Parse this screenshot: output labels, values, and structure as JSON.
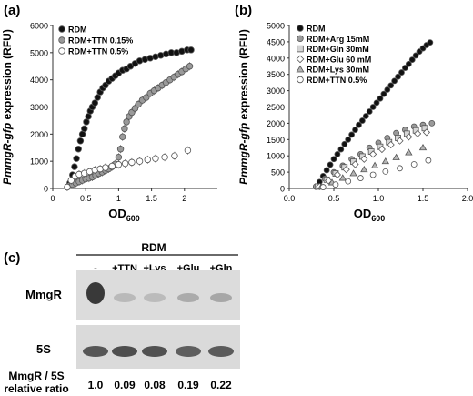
{
  "chart_data": [
    {
      "panel_label": "(a)",
      "type": "scatter",
      "ylabel": "PmmgR-gfp expression (RFU)",
      "ylabel_italic": "PmmgR-gfp",
      "ylabel_rest": " expression (RFU)",
      "xlabel": "OD600",
      "xlabel_main": "OD",
      "xlabel_sub": "600",
      "xlim": [
        0,
        2.5
      ],
      "ylim": [
        0,
        6000
      ],
      "xticks": [
        "0",
        "0.5",
        "1",
        "1.5",
        "2"
      ],
      "yticks": [
        "0",
        "1000",
        "2000",
        "3000",
        "4000",
        "5000",
        "6000"
      ],
      "legend_position": "top-left",
      "series": [
        {
          "name": "RDM",
          "marker": "circle",
          "fill": "#111111",
          "x": [
            0.26,
            0.3,
            0.33,
            0.36,
            0.39,
            0.42,
            0.45,
            0.48,
            0.51,
            0.54,
            0.57,
            0.6,
            0.64,
            0.68,
            0.72,
            0.76,
            0.8,
            0.85,
            0.9,
            0.95,
            1.0,
            1.06,
            1.12,
            1.18,
            1.25,
            1.32,
            1.4,
            1.48,
            1.56,
            1.64,
            1.72,
            1.8,
            1.88,
            1.96,
            2.04,
            2.1
          ],
          "y": [
            200,
            500,
            800,
            1100,
            1450,
            1750,
            2000,
            2200,
            2450,
            2650,
            2850,
            3000,
            3150,
            3350,
            3550,
            3700,
            3800,
            3950,
            4050,
            4150,
            4250,
            4350,
            4400,
            4500,
            4600,
            4700,
            4750,
            4800,
            4850,
            4900,
            4950,
            5000,
            5000,
            5050,
            5100,
            5100
          ]
        },
        {
          "name": "RDM+TTN 0.15%",
          "marker": "circle",
          "fill": "#9a9a9a",
          "x": [
            0.25,
            0.3,
            0.35,
            0.4,
            0.45,
            0.5,
            0.55,
            0.6,
            0.65,
            0.7,
            0.75,
            0.8,
            0.85,
            0.9,
            0.95,
            1.0,
            1.03,
            1.06,
            1.09,
            1.12,
            1.16,
            1.2,
            1.25,
            1.3,
            1.36,
            1.42,
            1.48,
            1.54,
            1.6,
            1.66,
            1.72,
            1.78,
            1.84,
            1.9,
            1.96,
            2.02,
            2.08
          ],
          "y": [
            100,
            150,
            200,
            250,
            300,
            350,
            380,
            420,
            480,
            550,
            600,
            660,
            720,
            800,
            900,
            1150,
            1450,
            1900,
            2200,
            2450,
            2650,
            2800,
            2950,
            3100,
            3250,
            3350,
            3500,
            3600,
            3700,
            3800,
            3900,
            4000,
            4100,
            4200,
            4300,
            4400,
            4500
          ]
        },
        {
          "name": "RDM+TTN 0.5%",
          "marker": "circle",
          "fill": "#ffffff",
          "x": [
            0.22,
            0.28,
            0.34,
            0.4,
            0.48,
            0.56,
            0.64,
            0.72,
            0.8,
            0.9,
            1.0,
            1.1,
            1.2,
            1.32,
            1.44,
            1.56,
            1.7,
            1.85,
            2.05
          ],
          "y": [
            50,
            300,
            450,
            520,
            560,
            620,
            680,
            720,
            770,
            820,
            880,
            920,
            960,
            1000,
            1060,
            1100,
            1150,
            1200,
            1400
          ]
        }
      ]
    },
    {
      "panel_label": "(b)",
      "type": "scatter",
      "ylabel": "PmmgR-gfp expression (RFU)",
      "ylabel_italic": "PmmgR-gfp",
      "ylabel_rest": " expression (RFU)",
      "xlabel": "OD600",
      "xlabel_main": "OD",
      "xlabel_sub": "600",
      "xlim": [
        0,
        2.0
      ],
      "ylim": [
        0,
        5000
      ],
      "xticks": [
        "0.0",
        "0.5",
        "1.0",
        "1.5",
        "2.0"
      ],
      "yticks": [
        "0",
        "500",
        "1000",
        "1500",
        "2000",
        "2500",
        "3000",
        "3500",
        "4000",
        "4500",
        "5000"
      ],
      "legend_position": "top-left",
      "series": [
        {
          "name": "RDM",
          "marker": "circle",
          "fill": "#111111",
          "x": [
            0.3,
            0.34,
            0.38,
            0.42,
            0.46,
            0.5,
            0.54,
            0.58,
            0.62,
            0.66,
            0.7,
            0.74,
            0.78,
            0.82,
            0.86,
            0.9,
            0.94,
            0.98,
            1.02,
            1.06,
            1.1,
            1.14,
            1.18,
            1.22,
            1.26,
            1.3,
            1.34,
            1.38,
            1.42,
            1.46,
            1.5,
            1.54,
            1.58
          ],
          "y": [
            50,
            200,
            380,
            560,
            730,
            900,
            1050,
            1200,
            1360,
            1500,
            1650,
            1800,
            1950,
            2080,
            2220,
            2360,
            2500,
            2630,
            2760,
            2900,
            3030,
            3160,
            3300,
            3430,
            3560,
            3700,
            3820,
            3950,
            4080,
            4200,
            4300,
            4400,
            4480
          ]
        },
        {
          "name": "RDM+Arg 15mM",
          "marker": "circle",
          "fill": "#9a9a9a",
          "x": [
            0.3,
            0.4,
            0.5,
            0.6,
            0.7,
            0.8,
            0.9,
            1.0,
            1.1,
            1.2,
            1.3,
            1.4,
            1.5,
            1.6
          ],
          "y": [
            60,
            300,
            500,
            700,
            900,
            1050,
            1250,
            1400,
            1550,
            1700,
            1800,
            1900,
            1950,
            2000
          ]
        },
        {
          "name": "RDM+Gln 30mM",
          "marker": "square",
          "fill": "#d6d6d6",
          "x": [
            0.32,
            0.42,
            0.52,
            0.62,
            0.72,
            0.82,
            0.92,
            1.02,
            1.12,
            1.22,
            1.32,
            1.42,
            1.52
          ],
          "y": [
            60,
            270,
            460,
            650,
            820,
            980,
            1130,
            1280,
            1420,
            1550,
            1680,
            1780,
            1850
          ]
        },
        {
          "name": "RDM+Glu 60 mM",
          "marker": "diamond",
          "fill": "#ffffff",
          "x": [
            0.34,
            0.44,
            0.54,
            0.64,
            0.74,
            0.84,
            0.94,
            1.04,
            1.14,
            1.24,
            1.34,
            1.44,
            1.54
          ],
          "y": [
            60,
            240,
            420,
            580,
            740,
            900,
            1050,
            1200,
            1340,
            1460,
            1580,
            1680,
            1720
          ]
        },
        {
          "name": "RDM+Lys 30mM",
          "marker": "triangle",
          "fill": "#b4b4b4",
          "x": [
            0.36,
            0.48,
            0.6,
            0.72,
            0.84,
            0.96,
            1.08,
            1.2,
            1.34,
            1.5
          ],
          "y": [
            50,
            180,
            320,
            460,
            580,
            700,
            830,
            950,
            1100,
            1250
          ]
        },
        {
          "name": "RDM+TTN 0.5%",
          "marker": "circle",
          "fill": "#ffffff",
          "x": [
            0.38,
            0.52,
            0.66,
            0.8,
            0.94,
            1.08,
            1.24,
            1.4,
            1.56
          ],
          "y": [
            40,
            120,
            220,
            320,
            420,
            520,
            620,
            740,
            860
          ]
        }
      ]
    }
  ],
  "blot": {
    "panel_label": "(c)",
    "group_label": "RDM",
    "lanes": [
      "-",
      "+TTN",
      "+Lys",
      "+Glu",
      "+Gln"
    ],
    "row_labels": [
      "MmgR",
      "5S"
    ],
    "ratio_label_line1": "MmgR / 5S",
    "ratio_label_line2": "relative ratio",
    "ratios": [
      "1.0",
      "0.09",
      "0.08",
      "0.19",
      "0.22"
    ],
    "mmgr_intensity": [
      1.0,
      0.09,
      0.08,
      0.19,
      0.22
    ],
    "s5_intensity": [
      0.75,
      0.8,
      0.78,
      0.7,
      0.72
    ]
  }
}
